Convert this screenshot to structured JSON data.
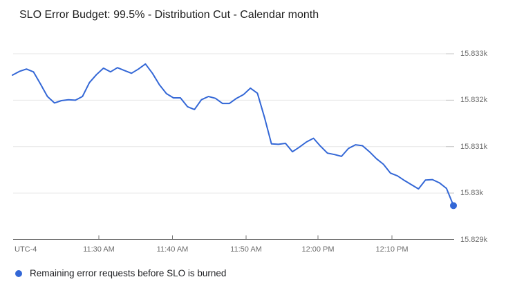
{
  "chart_data": {
    "type": "line",
    "title": "SLO Error Budget: 99.5% - Distribution Cut - Calendar month",
    "x_axis": {
      "timezone_label": "UTC-4",
      "tick_labels": [
        "11:30 AM",
        "11:40 AM",
        "11:50 AM",
        "12:00 PM",
        "12:10 PM"
      ],
      "approx_span": "11:18 AM to 12:18 PM, ~1 minute sampling"
    },
    "y_axis": {
      "tick_labels": [
        "15.833k",
        "15.832k",
        "15.831k",
        "15.83k",
        "15.829k"
      ],
      "tick_values": [
        15833,
        15832,
        15831,
        15830,
        15829
      ],
      "range": [
        15829,
        15833
      ]
    },
    "grid": "horizontal-only",
    "legend_position": "bottom-left",
    "series": [
      {
        "name": "Remaining error requests before SLO is burned",
        "color": "#3367d6",
        "end_point_marker": true,
        "values": [
          15832.54,
          15832.62,
          15832.67,
          15832.61,
          15832.35,
          15832.08,
          15831.94,
          15831.99,
          15832.01,
          15832.0,
          15832.08,
          15832.38,
          15832.55,
          15832.69,
          15832.61,
          15832.7,
          15832.64,
          15832.58,
          15832.67,
          15832.78,
          15832.58,
          15832.33,
          15832.14,
          15832.05,
          15832.05,
          15831.86,
          15831.8,
          15832.01,
          15832.08,
          15832.04,
          15831.93,
          15831.93,
          15832.04,
          15832.12,
          15832.26,
          15832.15,
          15831.63,
          15831.06,
          15831.05,
          15831.07,
          15830.89,
          15830.99,
          15831.1,
          15831.18,
          15831.01,
          15830.86,
          15830.83,
          15830.79,
          15830.96,
          15831.04,
          15831.02,
          15830.89,
          15830.74,
          15830.62,
          15830.43,
          15830.37,
          15830.27,
          15830.18,
          15830.09,
          15830.28,
          15830.29,
          15830.22,
          15830.1,
          15829.73
        ]
      }
    ]
  },
  "legend": {
    "items": [
      {
        "label": "Remaining error requests before SLO is burned",
        "color": "#3367d6"
      }
    ]
  },
  "colors": {
    "line_blue": "#3367d6",
    "gridline": "#e6e6e6",
    "gridline_end_tick": "#c4c4c4",
    "axis": "#757575",
    "axis_label": "#6b6b6b",
    "title_text": "#212121",
    "legend_text": "#202124",
    "background": "#ffffff"
  }
}
